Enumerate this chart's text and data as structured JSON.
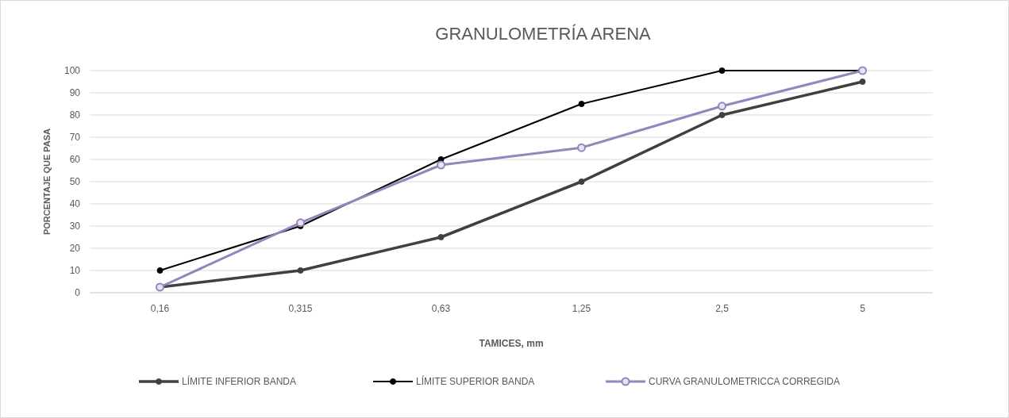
{
  "chart_data": {
    "type": "line",
    "title": "GRANULOMETRÍA  ARENA",
    "xlabel": "TAMICES, mm",
    "ylabel": "PORCENTAJE QUE PASA",
    "categories": [
      "0,16",
      "0,315",
      "0,63",
      "1,25",
      "2,5",
      "5"
    ],
    "series": [
      {
        "name": "LÍMITE INFERIOR BANDA",
        "color": "#404040",
        "values": [
          2.5,
          10,
          25,
          50,
          80,
          95
        ]
      },
      {
        "name": "LÍMITE SUPERIOR BANDA",
        "color": "#000000",
        "values": [
          10,
          30,
          60,
          85,
          100,
          100
        ]
      },
      {
        "name": "CURVA GRANULOMETRICCA CORREGIDA",
        "color": "#9684bd",
        "values": [
          2.5,
          31.5,
          57.5,
          65.3,
          84,
          100
        ]
      }
    ],
    "ylim": [
      0,
      100
    ],
    "yticks": [
      0,
      10,
      20,
      30,
      40,
      50,
      60,
      70,
      80,
      90,
      100
    ],
    "grid": "y",
    "legend": "bottom",
    "marker": "circle",
    "line_style": "solid"
  }
}
